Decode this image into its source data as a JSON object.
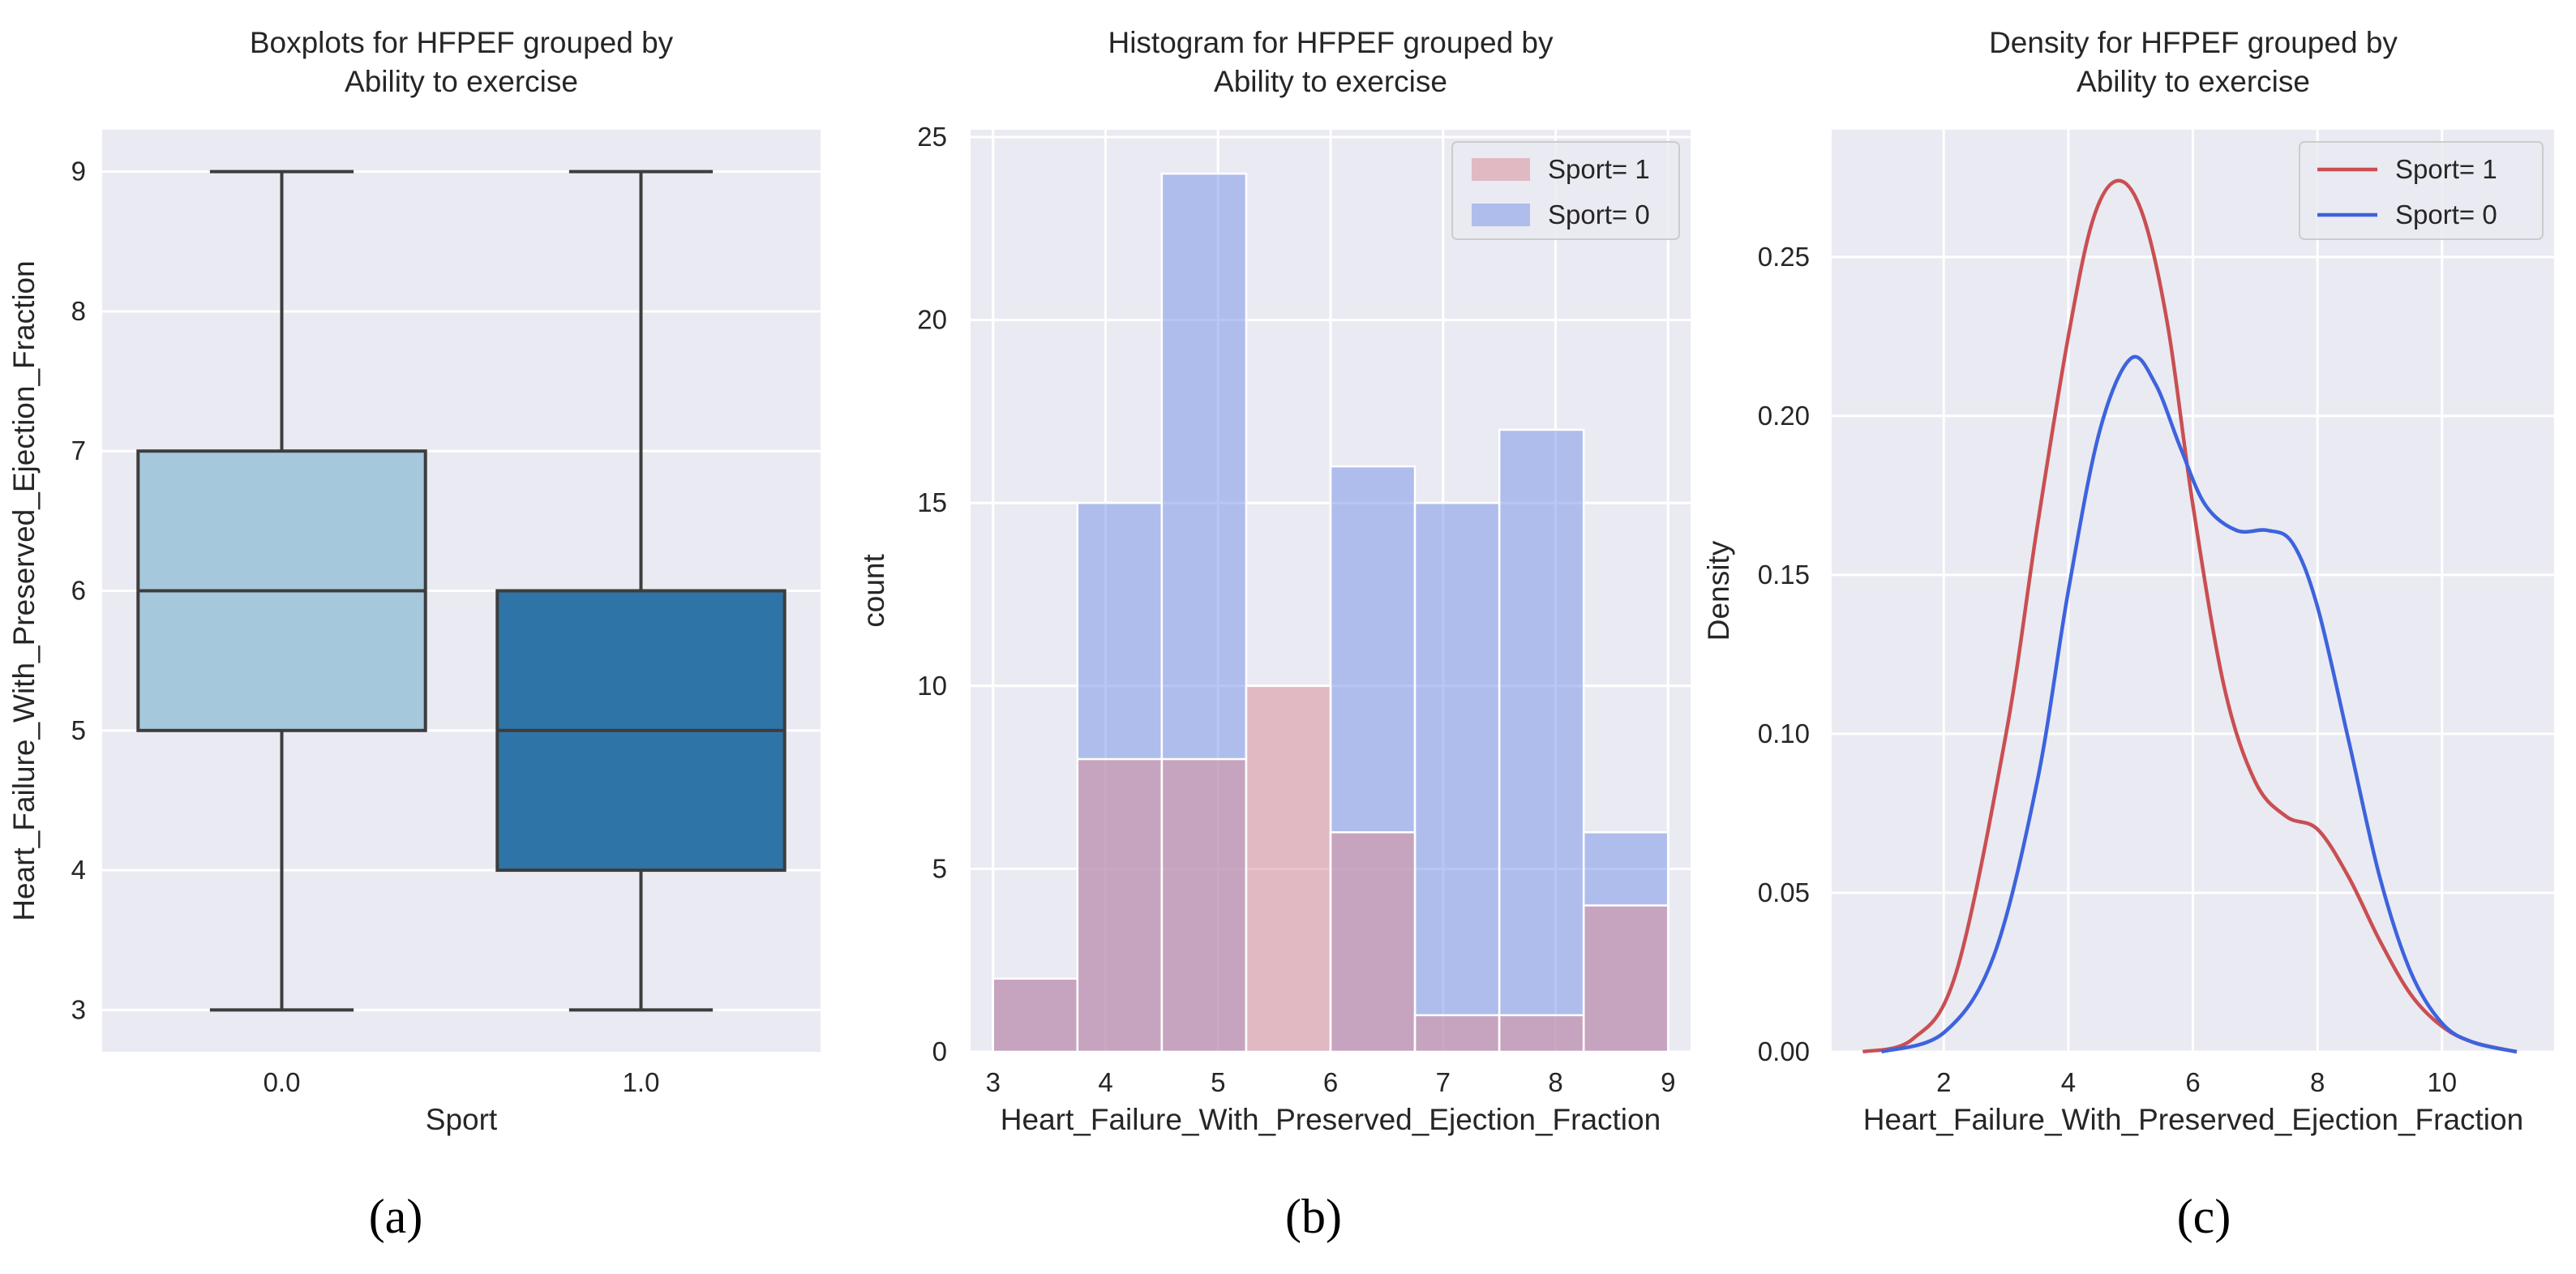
{
  "chart_data": [
    {
      "type": "box",
      "panel_label": "(a)",
      "title": [
        "Boxplots for HFPEF grouped by",
        "Ability to exercise"
      ],
      "xlabel": "Sport",
      "ylabel": "Heart_Failure_With_Preserved_Ejection_Fraction",
      "categories": [
        "0.0",
        "1.0"
      ],
      "ylim": [
        2.7,
        9.3
      ],
      "yticks": [
        "3",
        "4",
        "5",
        "6",
        "7",
        "8",
        "9"
      ],
      "boxes": [
        {
          "category": "0.0",
          "min": 3,
          "q1": 5,
          "median": 6,
          "q3": 7,
          "max": 9,
          "color": "#a6c8dd"
        },
        {
          "category": "1.0",
          "min": 3,
          "q1": 4,
          "median": 5,
          "q3": 6,
          "max": 9,
          "color": "#2f74a6"
        }
      ],
      "grid": true
    },
    {
      "type": "histogram",
      "panel_label": "(b)",
      "title": [
        "Histogram for HFPEF grouped by",
        "Ability to exercise"
      ],
      "xlabel": "Heart_Failure_With_Preserved_Ejection_Fraction",
      "ylabel": "count",
      "xlim": [
        2.8,
        9.2
      ],
      "ylim": [
        0,
        25.2
      ],
      "xticks": [
        "3",
        "4",
        "5",
        "6",
        "7",
        "8",
        "9"
      ],
      "yticks": [
        "0",
        "5",
        "10",
        "15",
        "20",
        "25"
      ],
      "bin_edges": [
        3.0,
        3.75,
        4.5,
        5.25,
        6.0,
        6.75,
        7.5,
        8.25,
        9.0
      ],
      "legend_position": "top-right",
      "series": [
        {
          "name": "Sport= 1",
          "color": "#d9909a",
          "values": [
            2,
            8,
            8,
            10,
            6,
            1,
            1,
            4
          ]
        },
        {
          "name": "Sport= 0",
          "color": "#7d97e8",
          "values": [
            2,
            15,
            24,
            0,
            16,
            15,
            17,
            6
          ]
        }
      ],
      "grid": true
    },
    {
      "type": "line",
      "panel_label": "(c)",
      "title": [
        "Density for HFPEF grouped by",
        "Ability to exercise"
      ],
      "xlabel": "Heart_Failure_With_Preserved_Ejection_Fraction",
      "ylabel": "Density",
      "xlim": [
        0.2,
        11.8
      ],
      "ylim": [
        0,
        0.29
      ],
      "xticks": [
        "2",
        "4",
        "6",
        "8",
        "10"
      ],
      "yticks": [
        "0.00",
        "0.05",
        "0.10",
        "0.15",
        "0.20",
        "0.25"
      ],
      "legend_position": "top-right",
      "series": [
        {
          "name": "Sport= 1",
          "color": "#c94f52",
          "x": [
            0.7,
            1.5,
            2.2,
            3.0,
            3.5,
            4.0,
            4.4,
            4.8,
            5.2,
            5.6,
            6.0,
            6.5,
            7.0,
            7.5,
            8.0,
            8.5,
            9.0,
            9.5,
            10.0,
            10.5,
            11.2
          ],
          "y": [
            0.0,
            0.004,
            0.025,
            0.1,
            0.165,
            0.225,
            0.262,
            0.274,
            0.263,
            0.228,
            0.172,
            0.115,
            0.085,
            0.074,
            0.07,
            0.055,
            0.035,
            0.018,
            0.008,
            0.003,
            0.0
          ]
        },
        {
          "name": "Sport= 0",
          "color": "#3d63dd",
          "x": [
            1.0,
            2.0,
            2.8,
            3.5,
            4.0,
            4.5,
            5.0,
            5.4,
            5.8,
            6.2,
            6.7,
            7.2,
            7.6,
            8.0,
            8.5,
            9.0,
            9.5,
            10.0,
            10.5,
            11.2
          ],
          "y": [
            0.0,
            0.006,
            0.03,
            0.085,
            0.145,
            0.195,
            0.218,
            0.21,
            0.19,
            0.172,
            0.164,
            0.164,
            0.16,
            0.14,
            0.098,
            0.055,
            0.025,
            0.009,
            0.003,
            0.0
          ]
        }
      ],
      "grid": true
    }
  ]
}
